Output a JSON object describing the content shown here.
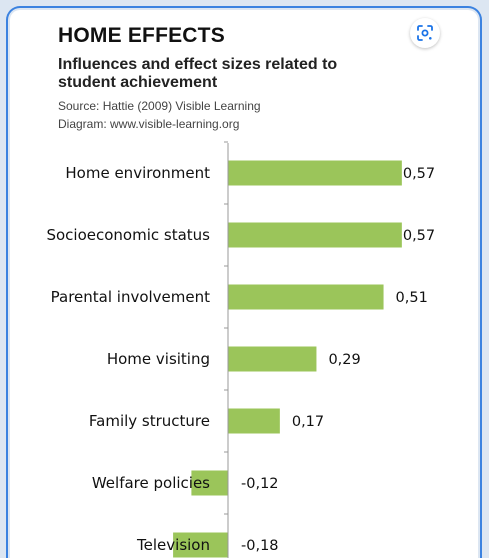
{
  "header": {
    "title": "HOME EFFECTS",
    "subtitle": "Influences and effect sizes related to student achievement",
    "source": "Source: Hattie (2009) Visible Learning",
    "diagram": "Diagram: www.visible-learning.org"
  },
  "lens_icon": "google-lens-icon",
  "colors": {
    "bar": "#9bc55a",
    "axis": "#999999",
    "frame": "#3b82e0"
  },
  "chart_data": {
    "type": "bar",
    "orientation": "horizontal",
    "categories": [
      "Home environment",
      "Socioeconomic status",
      "Parental involvement",
      "Home visiting",
      "Family structure",
      "Welfare policies",
      "Television"
    ],
    "values": [
      0.57,
      0.57,
      0.51,
      0.29,
      0.17,
      -0.12,
      -0.18
    ],
    "value_labels": [
      "0,57",
      "0,57",
      "0,51",
      "0,29",
      "0,17",
      "-0,12",
      "-0,18"
    ],
    "title": "HOME EFFECTS",
    "subtitle": "Influences and effect sizes related to student achievement",
    "grid": false,
    "legend": "none"
  }
}
